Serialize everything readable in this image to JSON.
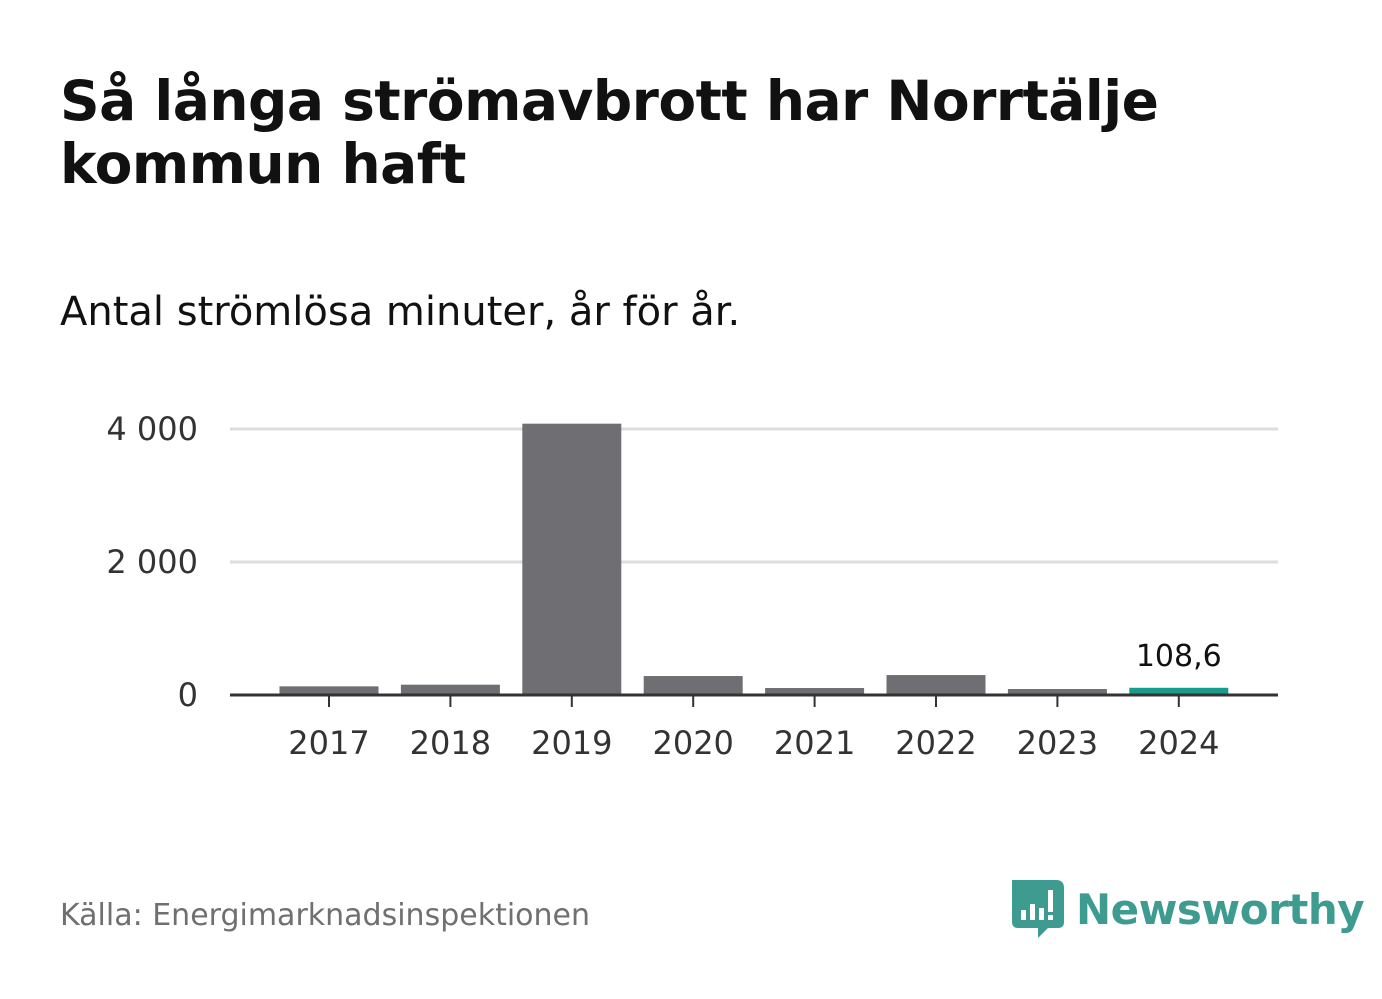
{
  "title": "Så långa strömavbrott har Norrtälje kommun haft",
  "subtitle": "Antal strömlösa minuter, år för år.",
  "source": "Källa: Energimarknadsinspektionen",
  "brand": {
    "name": "Newsworthy",
    "logo_icon": "bar-chart-speech-bubble-icon",
    "color": "#3d9b8f"
  },
  "colors": {
    "bar": "#6e6e73",
    "highlight": "#1a9c8c",
    "grid": "#dddddd",
    "axis": "#333333"
  },
  "chart_data": {
    "type": "bar",
    "title": "Så långa strömavbrott har Norrtälje kommun haft",
    "subtitle": "Antal strömlösa minuter, år för år.",
    "categories": [
      "2017",
      "2018",
      "2019",
      "2020",
      "2021",
      "2022",
      "2023",
      "2024"
    ],
    "values": [
      130,
      155,
      4080,
      285,
      105,
      300,
      90,
      108.6
    ],
    "highlight_index": 7,
    "highlight_label": "108,6",
    "ylim": [
      0,
      4000
    ],
    "yticks": [
      0,
      2000,
      4000
    ],
    "ytick_labels": [
      "0",
      "2 000",
      "4 000"
    ],
    "xlabel": "",
    "ylabel": "",
    "grid": true
  }
}
